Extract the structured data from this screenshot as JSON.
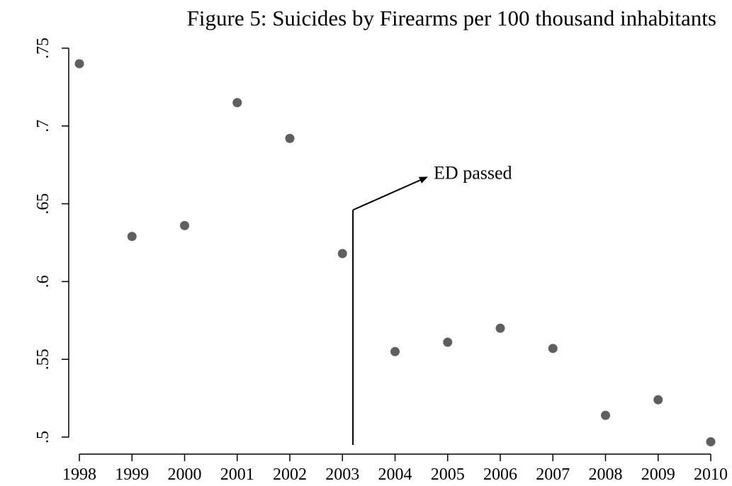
{
  "chart_data": {
    "type": "scatter",
    "title": "Figure 5: Suicides by Firearms per 100 thousand inhabitants",
    "xlabel": "",
    "ylabel": "",
    "x": [
      1998,
      1999,
      2000,
      2001,
      2002,
      2003,
      2004,
      2005,
      2006,
      2007,
      2008,
      2009,
      2010
    ],
    "values": [
      0.74,
      0.629,
      0.636,
      0.715,
      0.692,
      0.618,
      0.555,
      0.561,
      0.57,
      0.557,
      0.514,
      0.524,
      0.497
    ],
    "xlim": [
      1998,
      2010
    ],
    "ylim": [
      0.5,
      0.75
    ],
    "xticks": [
      "1998",
      "1999",
      "2000",
      "2001",
      "2002",
      "2003",
      "2004",
      "2005",
      "2006",
      "2007",
      "2008",
      "2009",
      "2010"
    ],
    "yticks": [
      {
        "value": 0.5,
        "label": ".5"
      },
      {
        "value": 0.55,
        "label": ".55"
      },
      {
        "value": 0.6,
        "label": ".6"
      },
      {
        "value": 0.65,
        "label": ".65"
      },
      {
        "value": 0.7,
        "label": ".7"
      },
      {
        "value": 0.75,
        "label": ".75"
      }
    ],
    "grid": false,
    "marker_color": "#5f5f5f",
    "annotation": {
      "label": "ED passed",
      "x": 2003.2,
      "y_bottom": 0.495,
      "y_elbow": 0.646,
      "arrow_tip_x": 2004.6,
      "arrow_tip_y": 0.667
    }
  }
}
